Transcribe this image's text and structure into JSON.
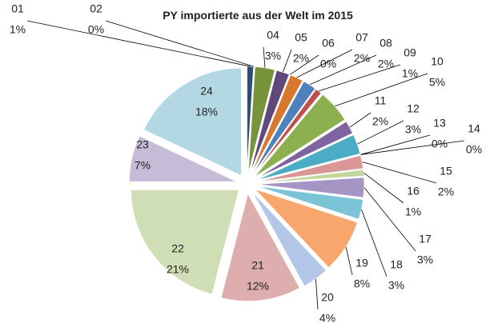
{
  "chart_data": {
    "type": "pie",
    "title": "PY importierte aus der Welt im 2015",
    "categories": [
      "01",
      "02",
      "04",
      "05",
      "06",
      "07",
      "08",
      "09",
      "10",
      "11",
      "12",
      "13",
      "14",
      "15",
      "16",
      "17",
      "18",
      "19",
      "20",
      "21",
      "22",
      "23",
      "24"
    ],
    "values": [
      1,
      0,
      3,
      2,
      0,
      2,
      2,
      1,
      5,
      2,
      3,
      0,
      0,
      2,
      1,
      3,
      3,
      8,
      4,
      12,
      21,
      7,
      18
    ],
    "value_labels": [
      "1%",
      "0%",
      "3%",
      "2%",
      "0%",
      "2%",
      "2%",
      "1%",
      "5%",
      "2%",
      "3%",
      "0%",
      "0%",
      "2%",
      "1%",
      "3%",
      "3%",
      "8%",
      "4%",
      "12%",
      "21%",
      "7%",
      "18%"
    ],
    "colors": [
      "#2c4d75",
      "#c0504d",
      "#77933c",
      "#5f497a",
      "#f79646",
      "#d8782f",
      "#4f81bd",
      "#c0504d",
      "#8db04f",
      "#8064a2",
      "#4bacc6",
      "#f79646",
      "#95b3d7",
      "#d99694",
      "#c3d69b",
      "#a595c4",
      "#7bc3d6",
      "#f9a66c",
      "#b4c6e7",
      "#deaeae",
      "#cfdeb4",
      "#c6bcd8",
      "#b3d8e4"
    ]
  }
}
